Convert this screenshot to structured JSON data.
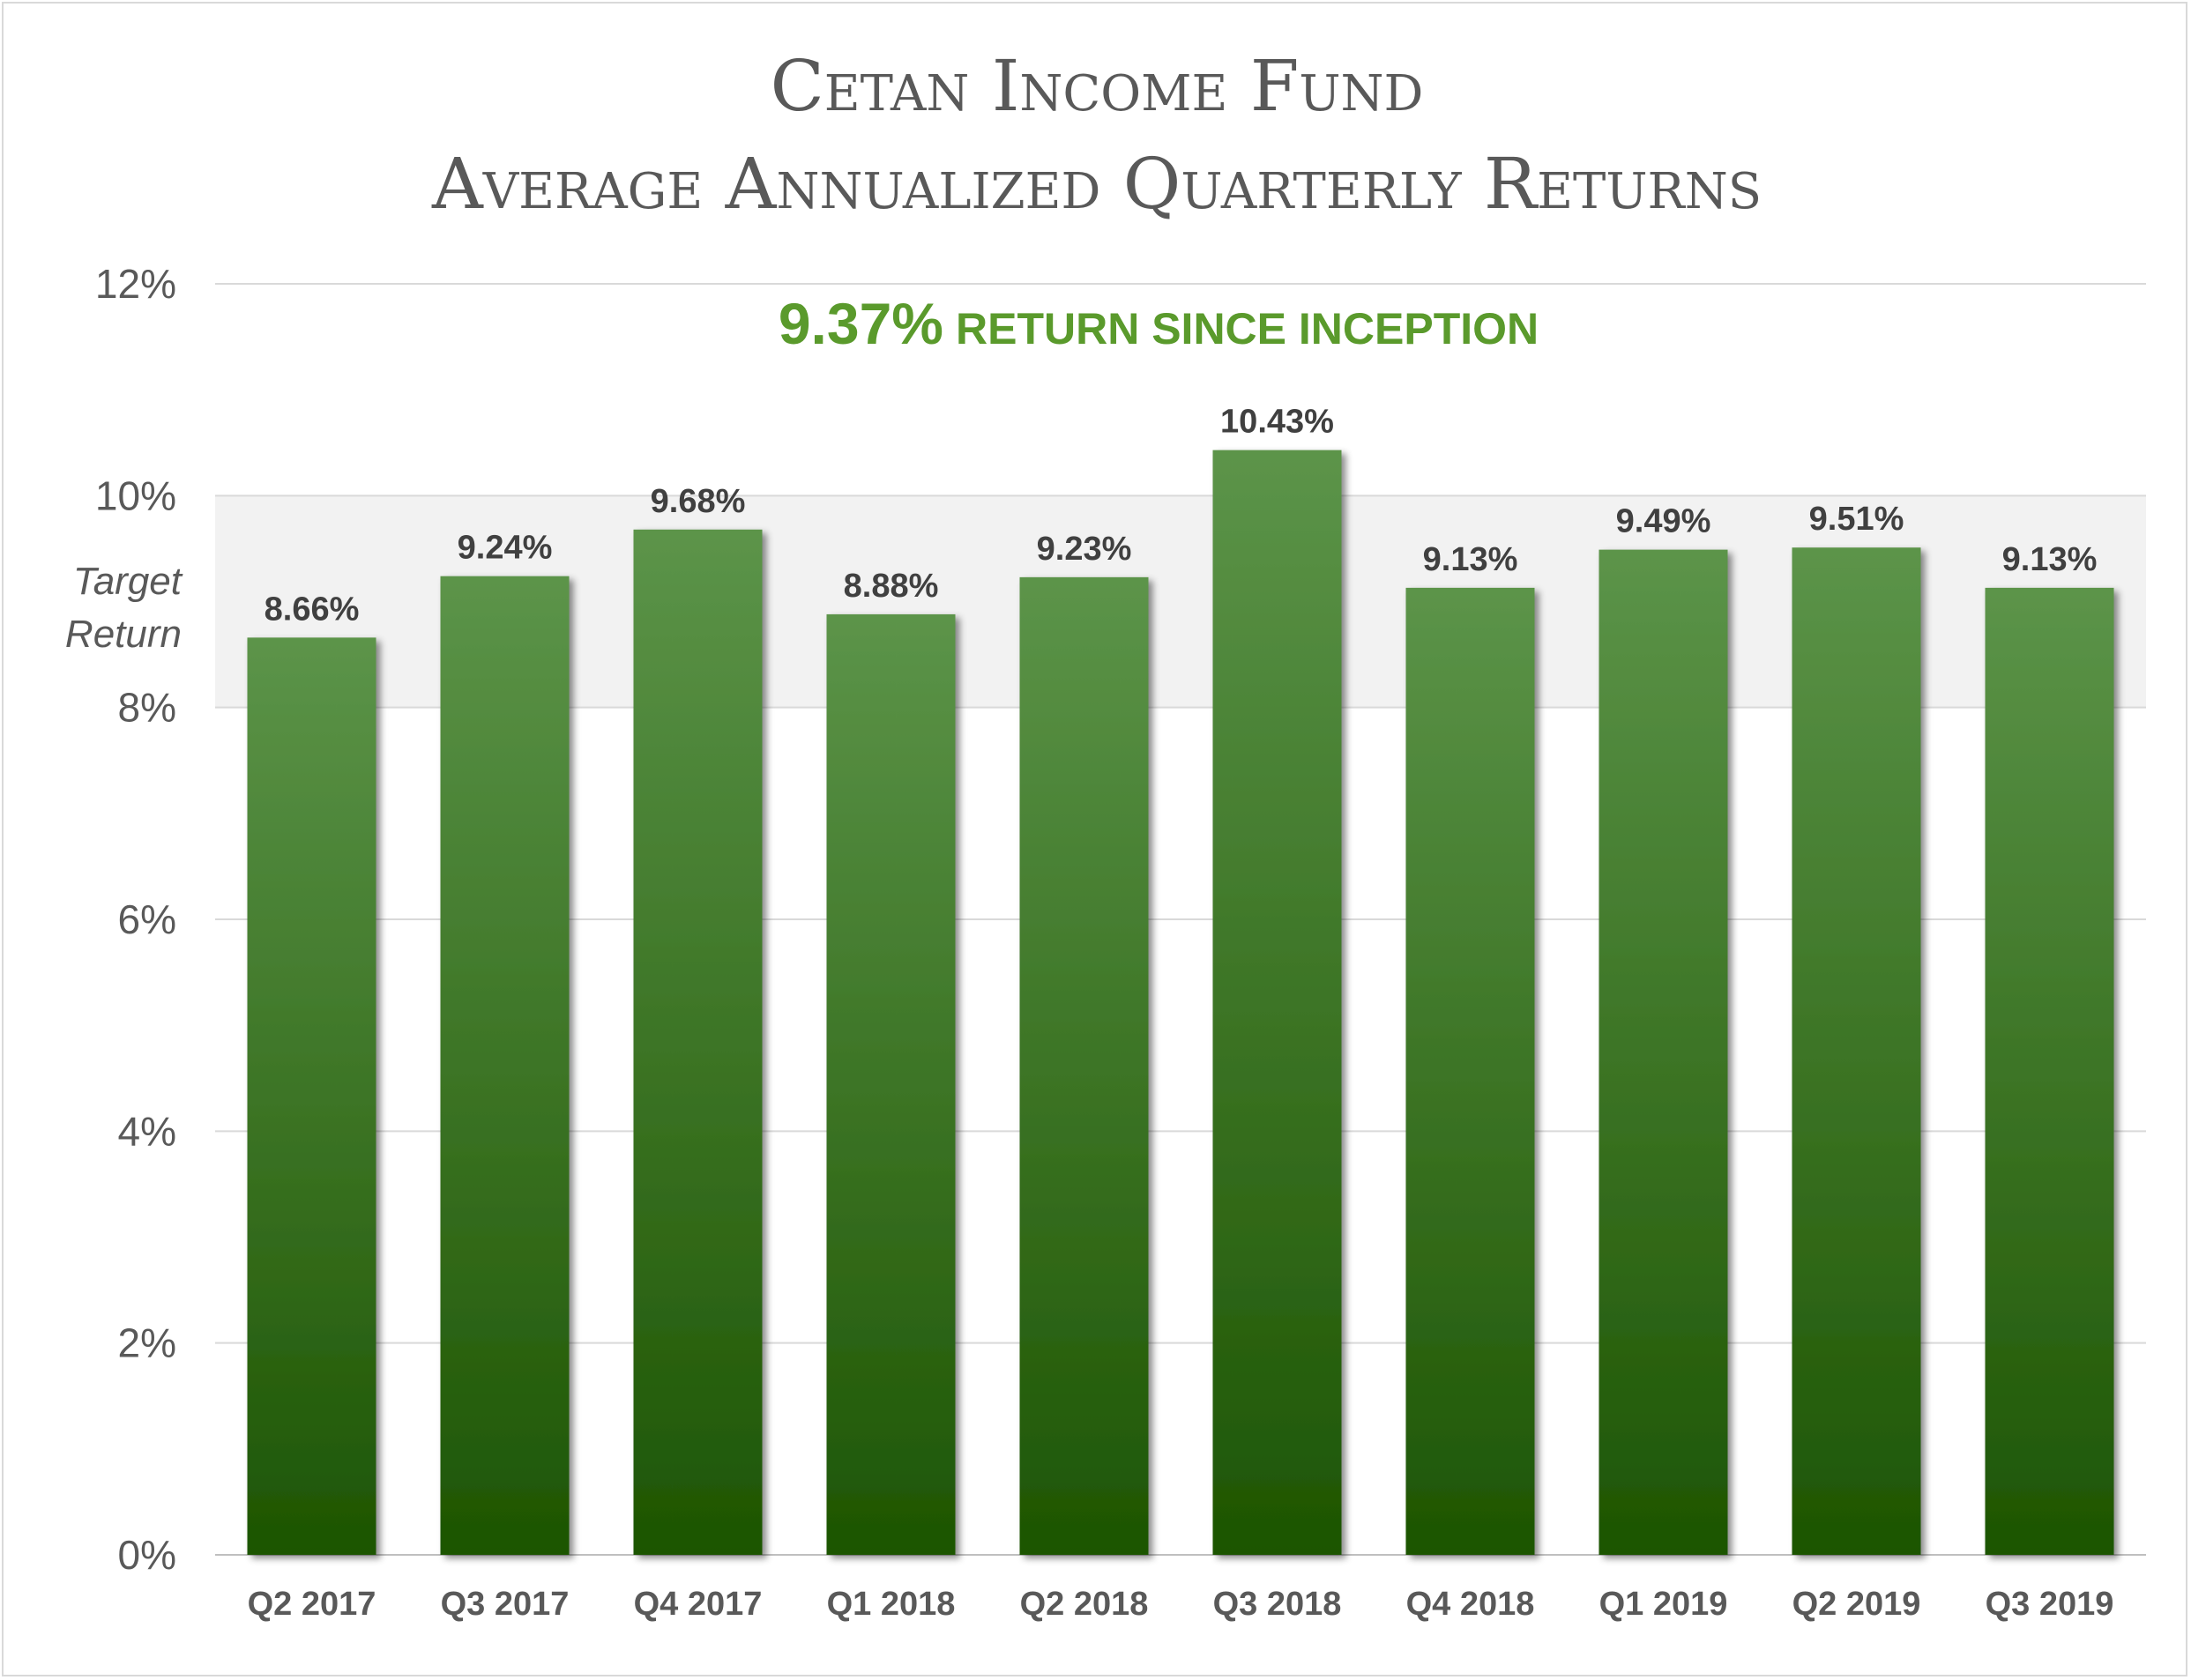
{
  "chart_data": {
    "type": "bar",
    "title_lines": [
      "Cetan Income Fund",
      "Average Annualized Quarterly Returns"
    ],
    "subtitle_value": "9.37%",
    "subtitle_text": "RETURN SINCE INCEPTION",
    "target_band": {
      "label_lines": [
        "Target",
        "Return"
      ],
      "from": 8,
      "to": 10
    },
    "categories": [
      "Q2 2017",
      "Q3 2017",
      "Q4 2017",
      "Q1 2018",
      "Q2 2018",
      "Q3 2018",
      "Q4 2018",
      "Q1 2019",
      "Q2 2019",
      "Q3 2019"
    ],
    "values": [
      8.66,
      9.24,
      9.68,
      8.88,
      9.23,
      10.43,
      9.13,
      9.49,
      9.51,
      9.13
    ],
    "data_labels": [
      "8.66%",
      "9.24%",
      "9.68%",
      "8.88%",
      "9.23%",
      "10.43%",
      "9.13%",
      "9.49%",
      "9.51%",
      "9.13%"
    ],
    "yticks": [
      0,
      2,
      4,
      6,
      8,
      10,
      12
    ],
    "ytick_labels": [
      "0%",
      "2%",
      "4%",
      "6%",
      "8%",
      "10%",
      "12%"
    ],
    "ylim": [
      0,
      12
    ],
    "grid": true,
    "legend": "none",
    "colors": {
      "bar_top": "#5c9449",
      "bar_bottom": "#1d5502",
      "subtitle": "#5a9a2c",
      "band": "#f2f2f2"
    }
  }
}
